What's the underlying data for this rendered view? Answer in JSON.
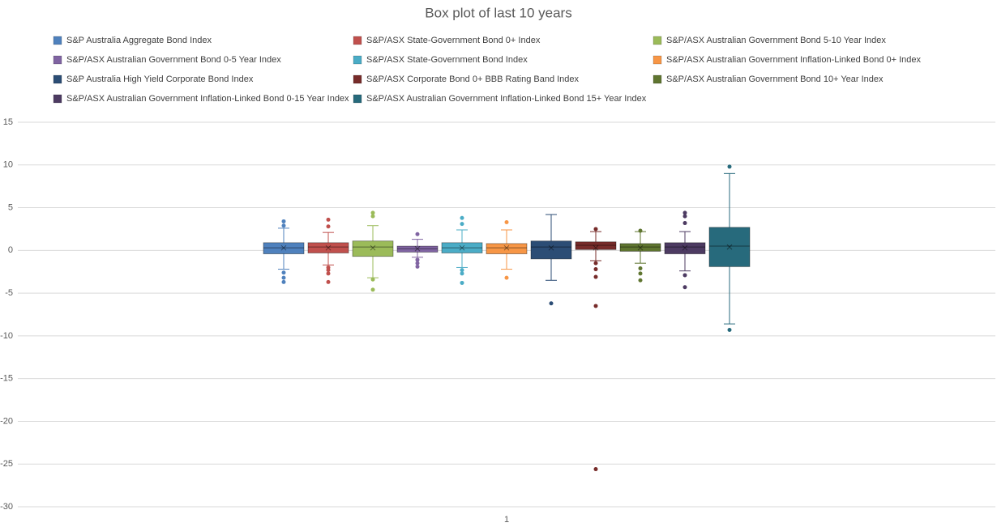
{
  "chart_data": {
    "type": "box",
    "title": "Box plot of last 10 years",
    "categories": [
      "1"
    ],
    "ylim": [
      -30,
      15
    ],
    "yticks": [
      -30,
      -25,
      -20,
      -15,
      -10,
      -5,
      0,
      5,
      10,
      15
    ],
    "grid": true,
    "legend": "top",
    "series": [
      {
        "name": "S&P Australia Aggregate Bond Index",
        "color": "#4f81bd",
        "whisker_low": -2.2,
        "q1": -0.4,
        "median": 0.3,
        "q3": 0.9,
        "whisker_high": 2.6,
        "mean": 0.3,
        "outliers": [
          3.4,
          2.9,
          -2.6,
          -3.2,
          -3.7
        ]
      },
      {
        "name": "S&P/ASX State-Government Bond 0+ Index",
        "color": "#c0504d",
        "whisker_low": -1.7,
        "q1": -0.3,
        "median": 0.4,
        "q3": 0.9,
        "whisker_high": 2.1,
        "mean": 0.3,
        "outliers": [
          3.6,
          2.8,
          -2.0,
          -2.3,
          -2.7,
          -3.7
        ]
      },
      {
        "name": "S&P/ASX Australian Government Bond 5-10 Year Index",
        "color": "#9bbb59",
        "whisker_low": -3.2,
        "q1": -0.7,
        "median": 0.4,
        "q3": 1.1,
        "whisker_high": 2.9,
        "mean": 0.3,
        "outliers": [
          4.4,
          4.0,
          -3.4,
          -4.6
        ]
      },
      {
        "name": "S&P/ASX Australian Government Bond 0-5 Year Index",
        "color": "#8064a2",
        "whisker_low": -0.8,
        "q1": -0.2,
        "median": 0.2,
        "q3": 0.5,
        "whisker_high": 1.3,
        "mean": 0.2,
        "outliers": [
          1.9,
          -1.1,
          -1.5,
          -1.9
        ]
      },
      {
        "name": "S&P/ASX State-Government Bond Index",
        "color": "#4bacc6",
        "whisker_low": -2.0,
        "q1": -0.3,
        "median": 0.3,
        "q3": 0.9,
        "whisker_high": 2.4,
        "mean": 0.3,
        "outliers": [
          3.8,
          3.1,
          -2.3,
          -2.7,
          -3.8
        ]
      },
      {
        "name": "S&P/ASX Australian Government Inflation-Linked Bond 0+ Index",
        "color": "#f79646",
        "whisker_low": -2.2,
        "q1": -0.4,
        "median": 0.3,
        "q3": 0.8,
        "whisker_high": 2.4,
        "mean": 0.3,
        "outliers": [
          3.3,
          -3.2
        ]
      },
      {
        "name": "S&P Australia High Yield Corporate Bond Index",
        "color": "#2c4d75",
        "whisker_low": -3.5,
        "q1": -1.0,
        "median": 0.4,
        "q3": 1.1,
        "whisker_high": 4.2,
        "mean": 0.3,
        "outliers": [
          -6.2
        ]
      },
      {
        "name": "S&P/ASX Corporate Bond 0+ BBB Rating Band Index",
        "color": "#772c2a",
        "whisker_low": -1.2,
        "q1": 0.1,
        "median": 0.6,
        "q3": 1.0,
        "whisker_high": 2.2,
        "mean": 0.3,
        "outliers": [
          2.5,
          -1.5,
          -2.2,
          -3.1,
          -6.5,
          -25.6
        ]
      },
      {
        "name": "S&P/ASX Australian Government Bond 10+ Year Index",
        "color": "#5f7530",
        "whisker_low": -1.5,
        "q1": -0.1,
        "median": 0.4,
        "q3": 0.8,
        "whisker_high": 2.2,
        "mean": 0.3,
        "outliers": [
          2.3,
          -2.1,
          -2.7,
          -3.5
        ]
      },
      {
        "name": "S&P/ASX Australian Government Inflation-Linked Bond 0-15 Year Index",
        "color": "#4d3b62",
        "whisker_low": -2.4,
        "q1": -0.4,
        "median": 0.4,
        "q3": 0.9,
        "whisker_high": 2.2,
        "mean": 0.3,
        "outliers": [
          4.4,
          4.0,
          3.2,
          -2.9,
          -4.3
        ]
      },
      {
        "name": "S&P/ASX Australian Government Inflation-Linked Bond 15+ Year Index",
        "color": "#276a7c",
        "whisker_low": -8.6,
        "q1": -1.9,
        "median": 0.5,
        "q3": 2.7,
        "whisker_high": 9.0,
        "mean": 0.4,
        "outliers": [
          9.8,
          -9.3
        ]
      }
    ]
  }
}
